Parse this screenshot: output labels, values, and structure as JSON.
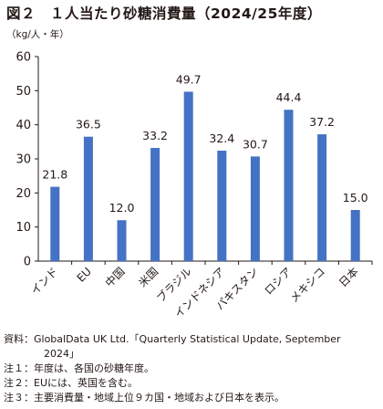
{
  "title": "図２　１人当たり砂糖消費量（2024/25年度）",
  "unit_label": "（kg/人・年）",
  "notes": {
    "source_line1": "資料：GlobalData UK Ltd.「Quarterly Statistical Update, September",
    "source_line2": "2024」",
    "note1": "注１：年度は、各国の砂糖年度。",
    "note2": "注２：EUには、英国を含む。",
    "note3": "注３：主要消費量・地域上位９カ国・地域および日本を表示。"
  },
  "chart_data": {
    "type": "bar",
    "title": "１人当たり砂糖消費量（2024/25年度）",
    "ylabel": "（kg/人・年）",
    "xlabel": "",
    "categories": [
      "インド",
      "EU",
      "中国",
      "米国",
      "ブラジル",
      "インドネシア",
      "パキスタン",
      "ロシア",
      "メキシコ",
      "日本"
    ],
    "values": [
      21.8,
      36.5,
      12.0,
      33.2,
      49.7,
      32.4,
      30.7,
      44.4,
      37.2,
      15.0
    ],
    "value_labels": [
      "21.8",
      "36.5",
      "12.0",
      "33.2",
      "49.7",
      "32.4",
      "30.7",
      "44.4",
      "37.2",
      "15.0"
    ],
    "yticks": [
      0,
      10,
      20,
      30,
      40,
      50,
      60
    ],
    "ylim": [
      0,
      60
    ],
    "grid": false,
    "legend": "none",
    "bar_color": "#4472c4",
    "axis_color": "#231815"
  }
}
